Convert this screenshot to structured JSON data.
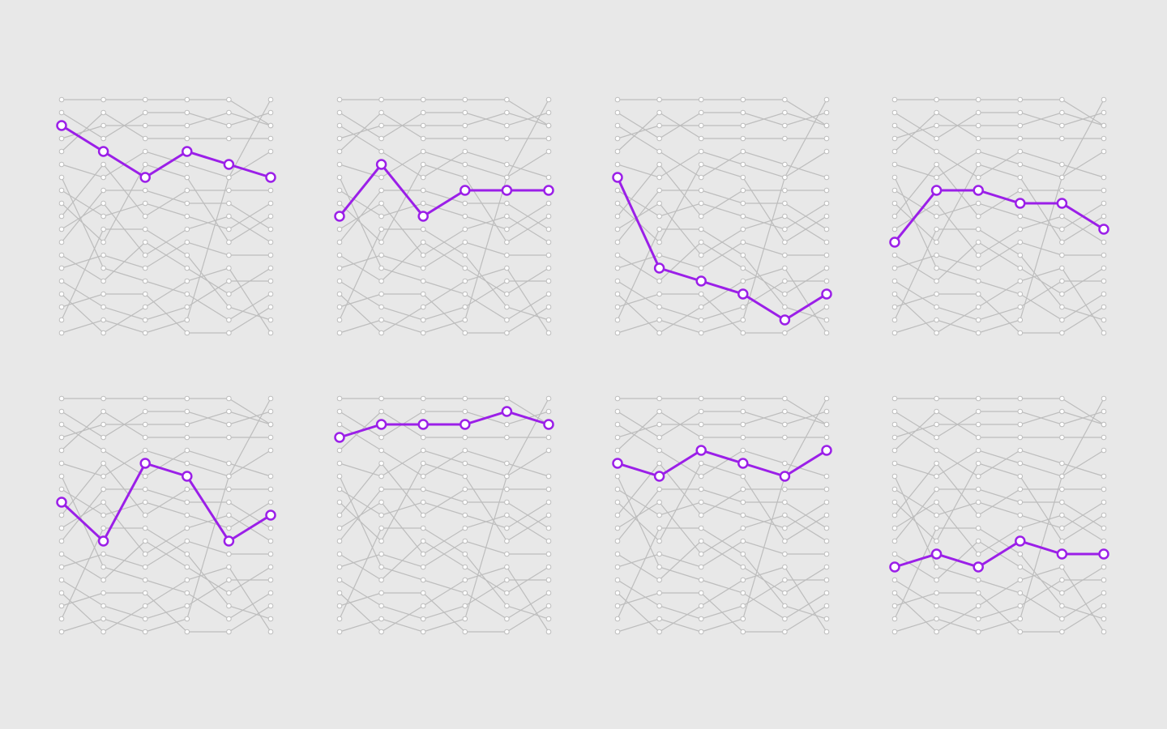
{
  "chart_data": {
    "type": "bump",
    "color": "#bdbdbd",
    "highlight_color": "#9b1fe8",
    "ylim": [
      1,
      19
    ],
    "panels": [
      0,
      1,
      2,
      3,
      4,
      5,
      6,
      7
    ],
    "series": [
      {
        "values": [
          3,
          5,
          7,
          5,
          6,
          7
        ]
      },
      {
        "values": [
          10,
          6,
          10,
          8,
          8,
          8
        ]
      },
      {
        "values": [
          7,
          14,
          15,
          16,
          18,
          16
        ]
      },
      {
        "values": [
          12,
          8,
          8,
          9,
          9,
          11
        ]
      },
      {
        "values": [
          9,
          12,
          6,
          7,
          12,
          10
        ]
      },
      {
        "values": [
          4,
          3,
          3,
          3,
          2,
          3
        ]
      },
      {
        "values": [
          6,
          7,
          5,
          6,
          7,
          5
        ]
      },
      {
        "values": [
          14,
          13,
          14,
          12,
          13,
          13
        ]
      },
      {
        "values": [
          1,
          1,
          1,
          1,
          1,
          3
        ]
      },
      {
        "values": [
          2,
          4,
          2,
          2,
          3,
          2
        ]
      },
      {
        "values": [
          5,
          2,
          4,
          4,
          4,
          4
        ]
      },
      {
        "values": [
          8,
          10,
          9,
          10,
          11,
          9
        ]
      },
      {
        "values": [
          11,
          9,
          13,
          11,
          10,
          12
        ]
      },
      {
        "values": [
          13,
          15,
          12,
          14,
          16,
          14
        ]
      },
      {
        "values": [
          15,
          17,
          18,
          17,
          15,
          15
        ]
      },
      {
        "values": [
          17,
          16,
          16,
          19,
          19,
          17
        ]
      },
      {
        "values": [
          19,
          18,
          19,
          18,
          7,
          1
        ]
      },
      {
        "values": [
          16,
          19,
          17,
          15,
          14,
          19
        ]
      },
      {
        "values": [
          18,
          11,
          11,
          13,
          17,
          18
        ]
      }
    ]
  }
}
